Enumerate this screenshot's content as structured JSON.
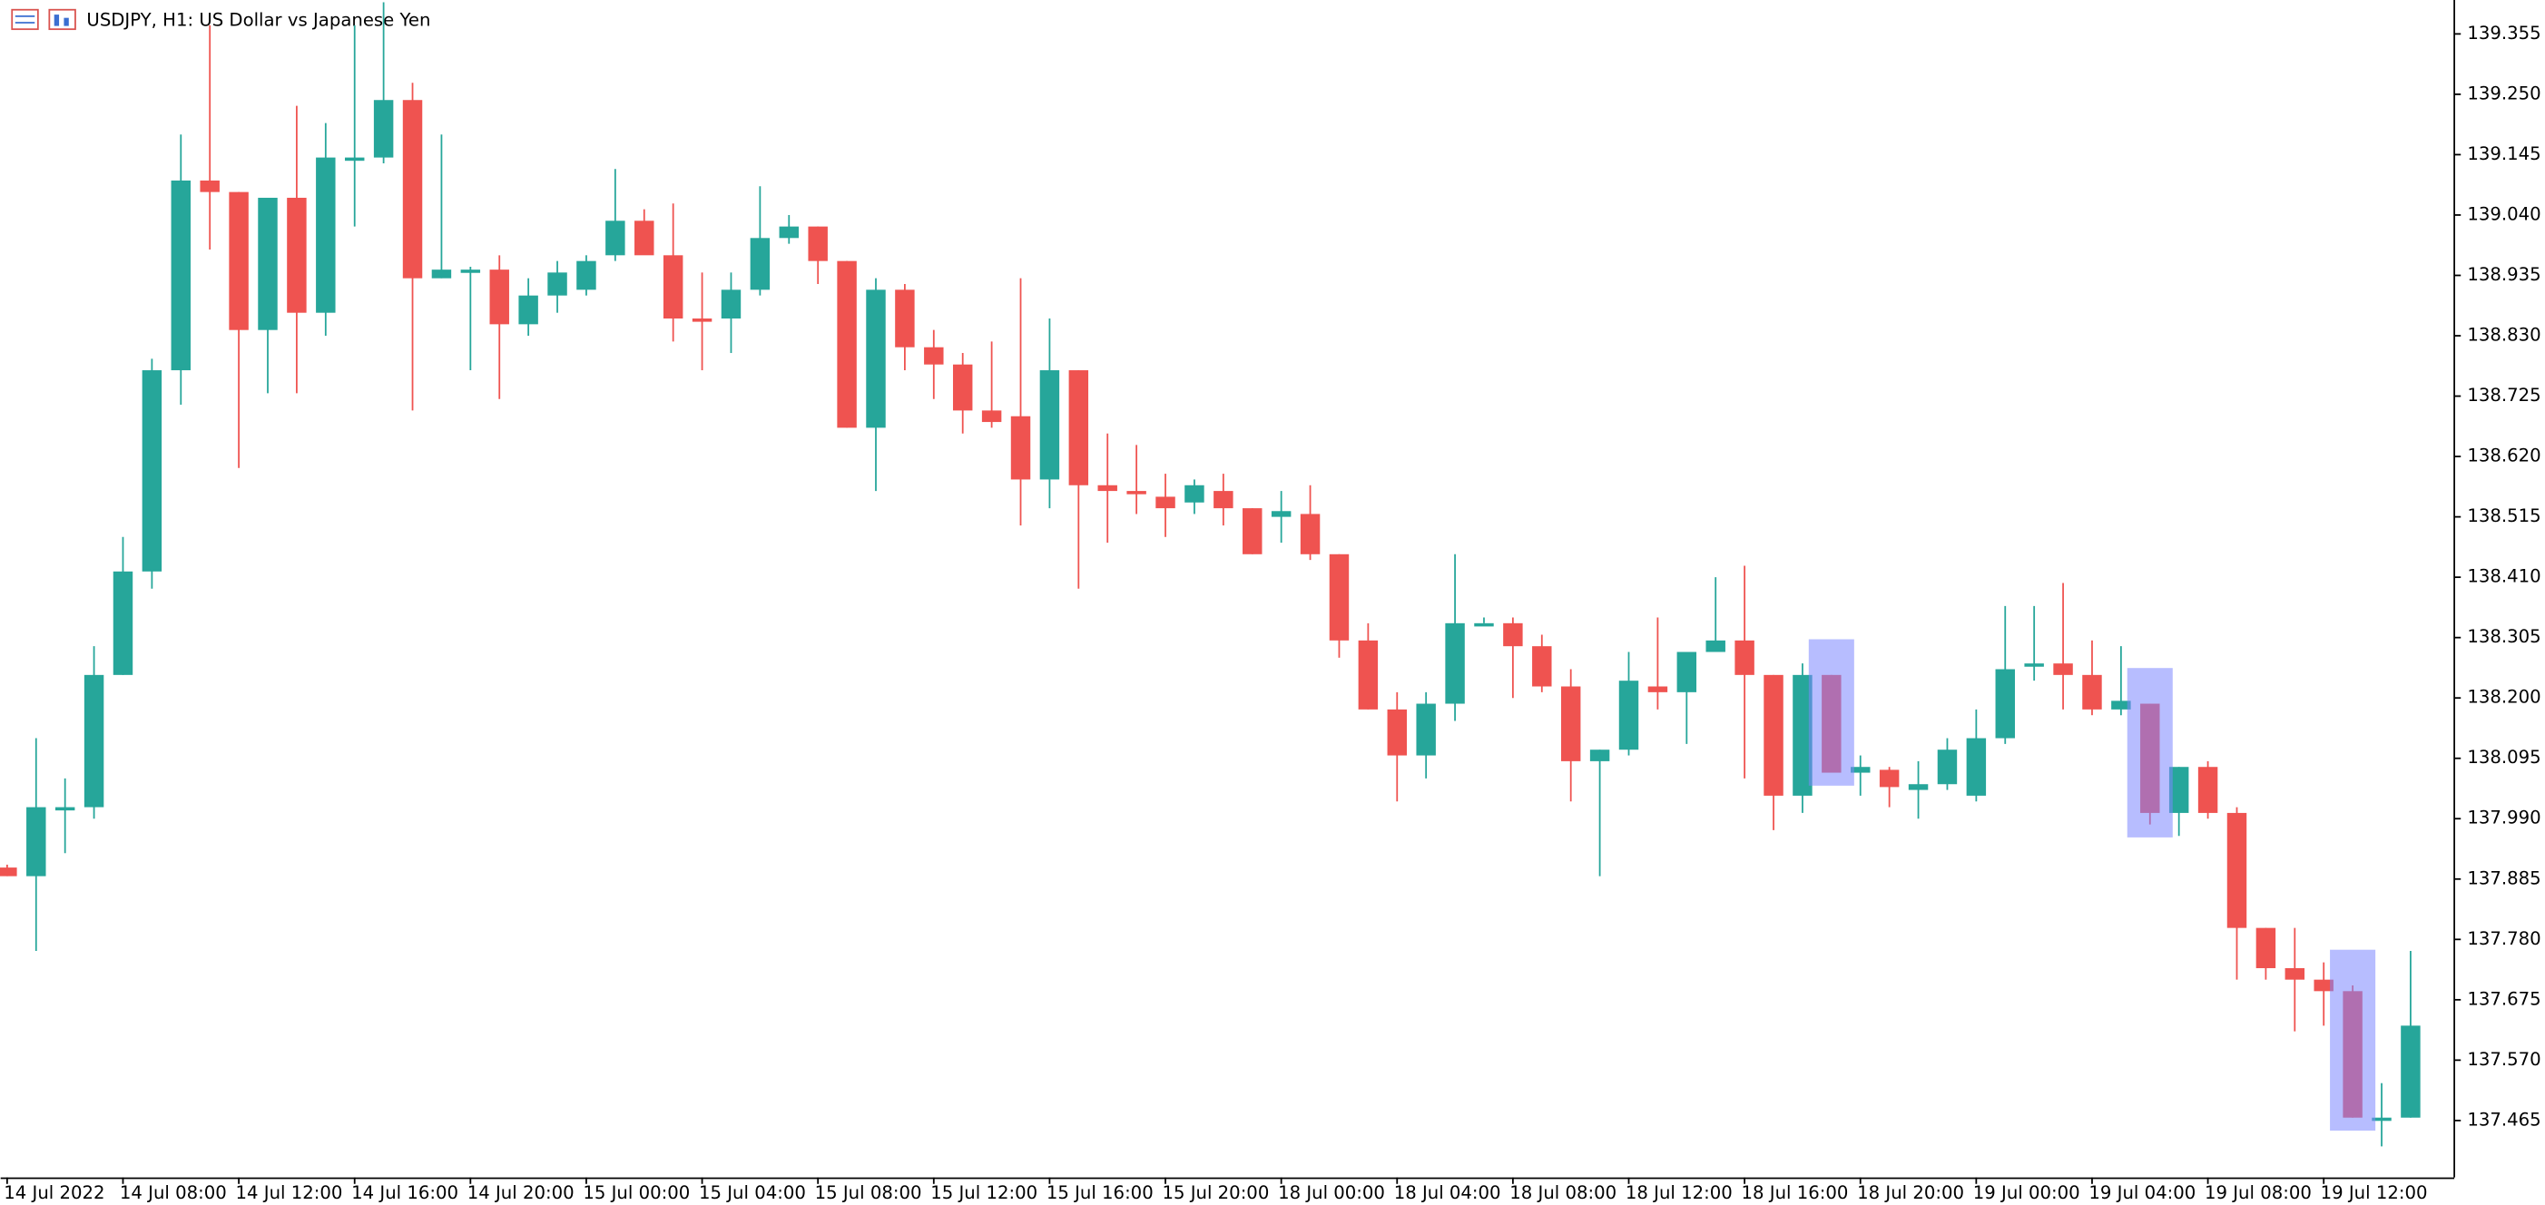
{
  "chart_data": {
    "type": "candlestick",
    "title": "USDJPY, H1:  US Dollar vs Japanese Yen",
    "up_color": "#26a69a",
    "down_color": "#ef5350",
    "highlight_color": "#7b86ff",
    "highlight_indices": [
      63,
      74,
      81
    ],
    "ylim": [
      137.366,
      139.414
    ],
    "yticks": [
      139.355,
      {
        "value": 139.25,
        "label": "139.250"
      },
      139.145,
      {
        "value": 139.04,
        "label": "139.040"
      },
      138.935,
      {
        "value": 138.83,
        "label": "138.830"
      },
      138.725,
      {
        "value": 138.62,
        "label": "138.620"
      },
      138.515,
      {
        "value": 138.41,
        "label": "138.410"
      },
      138.305,
      {
        "value": 138.2,
        "label": "138.200"
      },
      138.095,
      {
        "value": 137.99,
        "label": "137.990"
      },
      137.885,
      {
        "value": 137.78,
        "label": "137.780"
      },
      137.675,
      {
        "value": 137.57,
        "label": "137.570"
      },
      137.465
    ],
    "categories": [
      "14 Jul 2022",
      null,
      null,
      null,
      "14 Jul 08:00",
      null,
      null,
      null,
      "14 Jul 12:00",
      null,
      null,
      null,
      "14 Jul 16:00",
      null,
      null,
      null,
      "14 Jul 20:00",
      null,
      null,
      null,
      "15 Jul 00:00",
      null,
      null,
      null,
      "15 Jul 04:00",
      null,
      null,
      null,
      "15 Jul 08:00",
      null,
      null,
      null,
      "15 Jul 12:00",
      null,
      null,
      null,
      "15 Jul 16:00",
      null,
      null,
      null,
      "15 Jul 20:00",
      null,
      null,
      null,
      "18 Jul 00:00",
      null,
      null,
      null,
      "18 Jul 04:00",
      null,
      null,
      null,
      "18 Jul 08:00",
      null,
      null,
      null,
      "18 Jul 12:00",
      null,
      null,
      null,
      "18 Jul 16:00",
      null,
      null,
      null,
      "18 Jul 20:00",
      null,
      null,
      null,
      "19 Jul 00:00",
      null,
      null,
      null,
      "19 Jul 04:00",
      null,
      null,
      null,
      "19 Jul 08:00",
      null,
      null,
      null,
      "19 Jul 12:00",
      null,
      null,
      null
    ],
    "open": [
      137.905,
      137.89,
      138.005,
      138.01,
      138.24,
      138.42,
      138.77,
      139.1,
      139.08,
      138.84,
      139.07,
      138.87,
      139.14,
      139.14,
      139.24,
      138.93,
      138.945,
      138.945,
      138.85,
      138.9,
      138.91,
      138.97,
      139.03,
      138.97,
      138.86,
      138.86,
      138.91,
      139.0,
      139.02,
      138.96,
      138.67,
      138.91,
      138.81,
      138.78,
      138.7,
      138.69,
      138.58,
      138.77,
      138.57,
      138.56,
      138.55,
      138.54,
      138.56,
      138.53,
      138.515,
      138.52,
      138.45,
      138.3,
      138.18,
      138.1,
      138.19,
      138.33,
      138.33,
      138.29,
      138.22,
      138.09,
      138.11,
      138.22,
      138.21,
      138.28,
      138.3,
      138.24,
      138.03,
      138.24,
      138.07,
      138.075,
      138.04,
      138.05,
      138.03,
      138.13,
      138.255,
      138.26,
      138.24,
      138.18,
      138.19,
      138.0,
      138.08,
      138.0,
      137.8,
      137.73,
      137.71,
      137.69,
      137.47,
      137.47
    ],
    "high": [
      137.91,
      138.13,
      138.06,
      138.29,
      138.48,
      138.79,
      139.18,
      139.37,
      139.08,
      139.07,
      139.23,
      139.2,
      139.37,
      139.41,
      139.27,
      139.18,
      138.95,
      138.97,
      138.93,
      138.96,
      138.97,
      139.12,
      139.05,
      139.06,
      138.94,
      138.94,
      139.09,
      139.04,
      139.02,
      138.96,
      138.93,
      138.92,
      138.84,
      138.8,
      138.82,
      138.93,
      138.86,
      138.77,
      138.66,
      138.64,
      138.59,
      138.58,
      138.59,
      138.53,
      138.56,
      138.57,
      138.45,
      138.33,
      138.21,
      138.21,
      138.45,
      138.34,
      138.34,
      138.31,
      138.25,
      138.11,
      138.28,
      138.34,
      138.28,
      138.41,
      138.43,
      138.24,
      138.26,
      138.24,
      138.1,
      138.08,
      138.09,
      138.13,
      138.18,
      138.36,
      138.36,
      138.4,
      138.3,
      138.29,
      138.19,
      138.08,
      138.09,
      138.01,
      137.8,
      137.8,
      137.74,
      137.7,
      137.53,
      137.76
    ],
    "low": [
      137.89,
      137.76,
      137.93,
      137.99,
      138.24,
      138.39,
      138.71,
      138.98,
      138.6,
      138.73,
      138.73,
      138.83,
      139.02,
      139.13,
      138.7,
      138.93,
      138.77,
      138.72,
      138.83,
      138.87,
      138.9,
      138.96,
      138.98,
      138.82,
      138.77,
      138.8,
      138.9,
      138.99,
      138.92,
      138.67,
      138.56,
      138.77,
      138.72,
      138.66,
      138.67,
      138.5,
      138.53,
      138.39,
      138.47,
      138.52,
      138.48,
      138.52,
      138.5,
      138.45,
      138.47,
      138.44,
      138.27,
      138.18,
      138.02,
      138.06,
      138.16,
      138.33,
      138.2,
      138.21,
      138.02,
      137.89,
      138.1,
      138.18,
      138.12,
      138.28,
      138.06,
      137.97,
      138.0,
      138.07,
      138.03,
      138.01,
      137.99,
      138.04,
      138.02,
      138.12,
      138.23,
      138.18,
      138.17,
      138.17,
      137.98,
      137.96,
      137.99,
      137.71,
      137.71,
      137.62,
      137.63,
      137.47,
      137.42,
      137.47
    ],
    "close": [
      137.89,
      138.01,
      138.01,
      138.24,
      138.42,
      138.77,
      139.1,
      139.08,
      138.84,
      139.07,
      138.87,
      139.14,
      139.14,
      139.24,
      138.93,
      138.945,
      138.945,
      138.85,
      138.9,
      138.94,
      138.96,
      139.03,
      138.97,
      138.86,
      138.855,
      138.91,
      139.0,
      139.02,
      138.96,
      138.67,
      138.91,
      138.81,
      138.78,
      138.7,
      138.68,
      138.58,
      138.77,
      138.57,
      138.56,
      138.555,
      138.53,
      138.57,
      138.53,
      138.45,
      138.525,
      138.45,
      138.3,
      138.18,
      138.1,
      138.19,
      138.33,
      138.33,
      138.29,
      138.22,
      138.09,
      138.11,
      138.23,
      138.21,
      138.28,
      138.3,
      138.24,
      138.03,
      138.24,
      138.07,
      138.08,
      138.045,
      138.05,
      138.11,
      138.13,
      138.25,
      138.26,
      138.24,
      138.18,
      138.195,
      138.0,
      138.08,
      138.0,
      137.8,
      137.73,
      137.71,
      137.69,
      137.47,
      137.47,
      137.63
    ]
  }
}
